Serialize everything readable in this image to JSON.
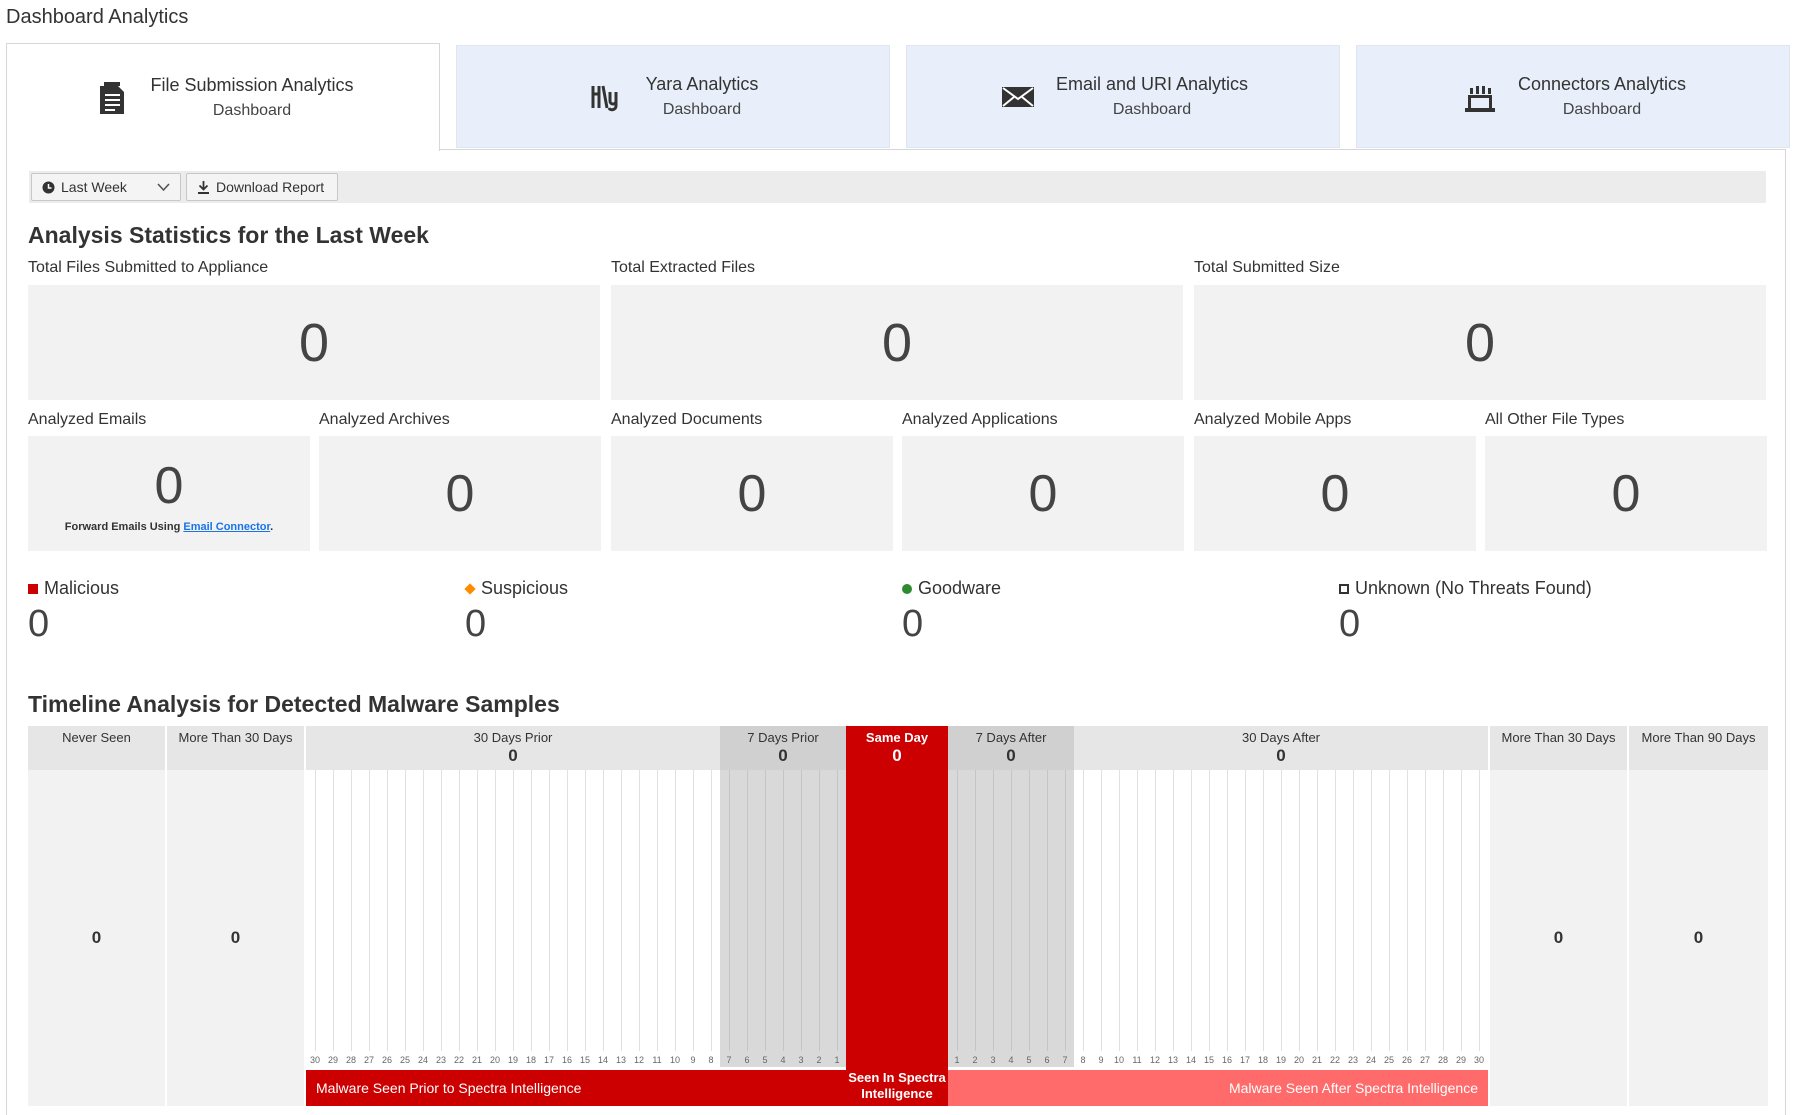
{
  "page": {
    "title": "Dashboard Analytics"
  },
  "tabs": [
    {
      "title": "File Submission Analytics",
      "subtitle": "Dashboard",
      "icon": "document-icon"
    },
    {
      "title": "Yara Analytics",
      "subtitle": "Dashboard",
      "icon": "yara-icon"
    },
    {
      "title": "Email and URI Analytics",
      "subtitle": "Dashboard",
      "icon": "envelope-icon"
    },
    {
      "title": "Connectors Analytics",
      "subtitle": "Dashboard",
      "icon": "connector-icon"
    }
  ],
  "toolbar": {
    "period_label": "Last Week",
    "download_label": "Download Report"
  },
  "stats": {
    "heading": "Analysis Statistics for the Last Week",
    "top": [
      {
        "label": "Total Files Submitted to Appliance",
        "value": "0"
      },
      {
        "label": "Total Extracted Files",
        "value": "0"
      },
      {
        "label": "Total Submitted Size",
        "value": "0"
      }
    ],
    "types": [
      {
        "label": "Analyzed Emails",
        "value": "0"
      },
      {
        "label": "Analyzed Archives",
        "value": "0"
      },
      {
        "label": "Analyzed Documents",
        "value": "0"
      },
      {
        "label": "Analyzed Applications",
        "value": "0"
      },
      {
        "label": "Analyzed Mobile Apps",
        "value": "0"
      },
      {
        "label": "All Other File Types",
        "value": "0"
      }
    ],
    "email_note_prefix": "Forward Emails Using ",
    "email_note_link": "Email Connector",
    "email_note_suffix": "."
  },
  "verdicts": [
    {
      "label": "Malicious",
      "value": "0",
      "color": "#cc0000"
    },
    {
      "label": "Suspicious",
      "value": "0",
      "color": "#ff8c00"
    },
    {
      "label": "Goodware",
      "value": "0",
      "color": "#2e8b2e"
    },
    {
      "label": "Unknown (No Threats Found)",
      "value": "0",
      "color": "#333333"
    }
  ],
  "timeline": {
    "heading": "Timeline Analysis for Detected Malware Samples",
    "never_seen": {
      "label": "Never Seen",
      "value": "0"
    },
    "more_than_30_before": {
      "label": "More Than 30 Days",
      "value": "0"
    },
    "days_30_prior": {
      "label": "30 Days Prior",
      "value": "0"
    },
    "days_7_prior": {
      "label": "7 Days Prior",
      "value": "0"
    },
    "same_day": {
      "label": "Same Day",
      "value": "0",
      "footer": "Seen In Spectra Intelligence"
    },
    "days_7_after": {
      "label": "7 Days After",
      "value": "0"
    },
    "days_30_after": {
      "label": "30 Days After",
      "value": "0"
    },
    "more_than_30_after": {
      "label": "More Than 30 Days",
      "value": "0"
    },
    "more_than_90_after": {
      "label": "More Than 90 Days",
      "value": "0"
    },
    "prior_ticks_30": [
      "30",
      "29",
      "28",
      "27",
      "26",
      "25",
      "24",
      "23",
      "22",
      "21",
      "20",
      "19",
      "18",
      "17",
      "16",
      "15",
      "14",
      "13",
      "12",
      "11",
      "10",
      "9",
      "8"
    ],
    "prior_ticks_7": [
      "7",
      "6",
      "5",
      "4",
      "3",
      "2",
      "1"
    ],
    "after_ticks_7": [
      "1",
      "2",
      "3",
      "4",
      "5",
      "6",
      "7"
    ],
    "after_ticks_30": [
      "8",
      "9",
      "10",
      "11",
      "12",
      "13",
      "14",
      "15",
      "16",
      "17",
      "18",
      "19",
      "20",
      "21",
      "22",
      "23",
      "24",
      "25",
      "26",
      "27",
      "28",
      "29",
      "30"
    ],
    "bar_prior_label": "Malware Seen Prior to Spectra Intelligence",
    "bar_after_label": "Malware Seen After Spectra Intelligence"
  }
}
